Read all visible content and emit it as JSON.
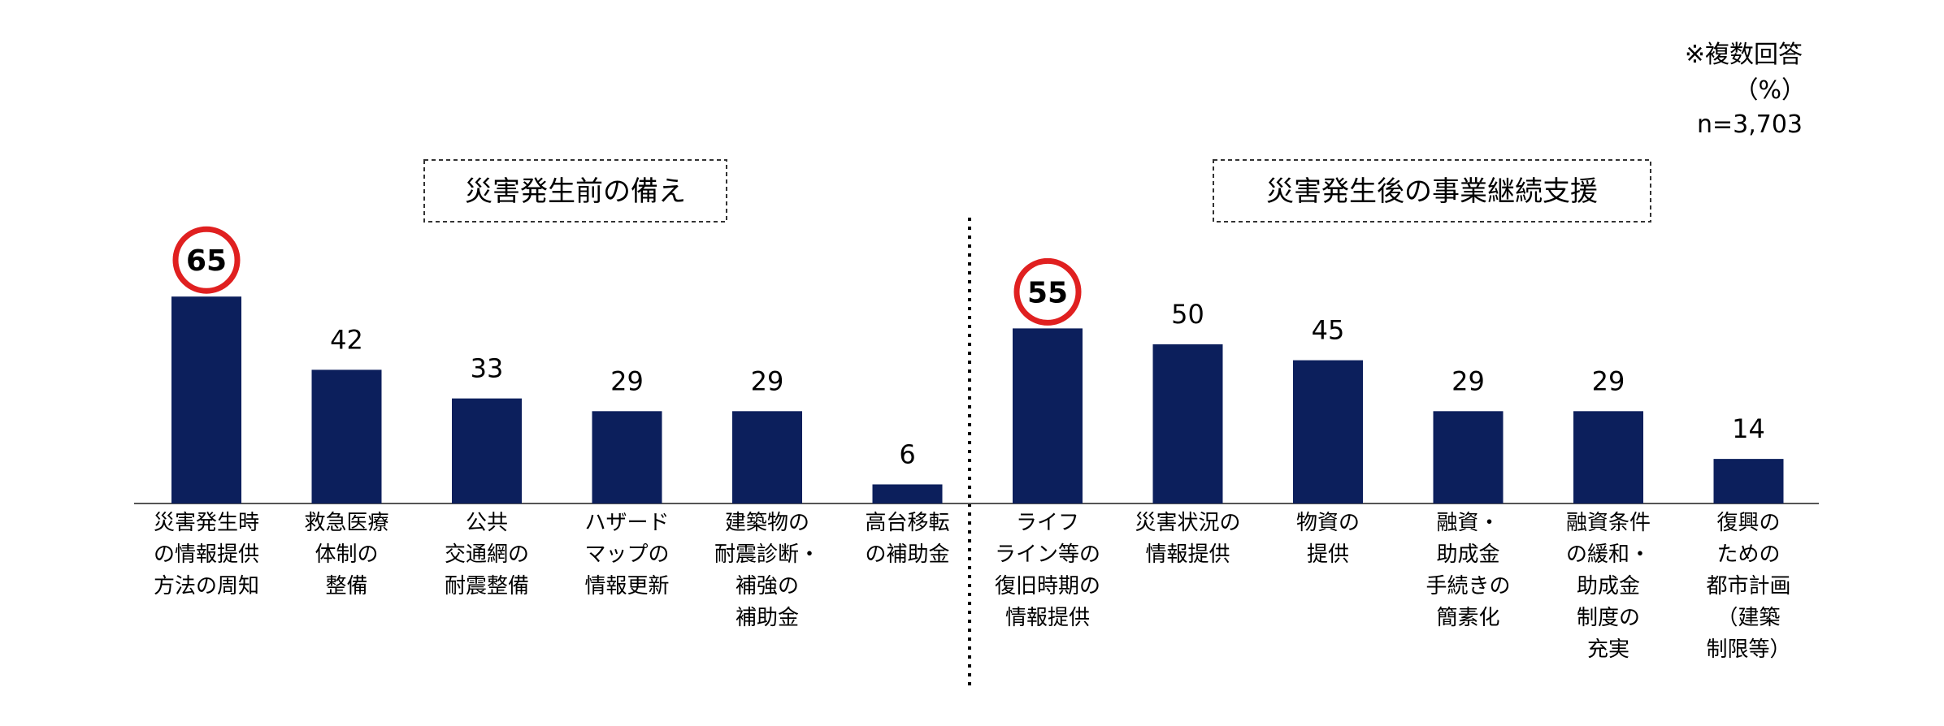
{
  "notes": {
    "multiple": "※複数回答",
    "unit": "（%）",
    "n": "n=3,703"
  },
  "sections": [
    {
      "title": "災害発生前の備え"
    },
    {
      "title": "災害発生後の事業継続支援"
    }
  ],
  "colors": {
    "bar": "#0c1f5c",
    "highlight": "#e02020",
    "axis": "#555555"
  },
  "chart_data": {
    "type": "bar",
    "unit": "%",
    "ylim": [
      0,
      70
    ],
    "grid": false,
    "groups": [
      {
        "title": "災害発生前の備え",
        "categories": [
          [
            "災害発生時",
            "の情報提供",
            "方法の周知"
          ],
          [
            "救急医療",
            "体制の",
            "整備"
          ],
          [
            "公共",
            "交通網の",
            "耐震整備"
          ],
          [
            "ハザード",
            "マップの",
            "情報更新"
          ],
          [
            "建築物の",
            "耐震診断・",
            "補強の",
            "補助金"
          ],
          [
            "高台移転",
            "の補助金"
          ]
        ],
        "values": [
          65,
          42,
          33,
          29,
          29,
          6
        ],
        "highlight_index": 0
      },
      {
        "title": "災害発生後の事業継続支援",
        "categories": [
          [
            "ライフ",
            "ライン等の",
            "復旧時期の",
            "情報提供"
          ],
          [
            "災害状況の",
            "情報提供"
          ],
          [
            "物資の",
            "提供"
          ],
          [
            "融資・",
            "助成金",
            "手続きの",
            "簡素化"
          ],
          [
            "融資条件",
            "の緩和・",
            "助成金",
            "制度の",
            "充実"
          ],
          [
            "復興の",
            "ための",
            "都市計画",
            "（建築",
            "制限等）"
          ]
        ],
        "values": [
          55,
          50,
          45,
          29,
          29,
          14
        ],
        "highlight_index": 0
      }
    ]
  }
}
